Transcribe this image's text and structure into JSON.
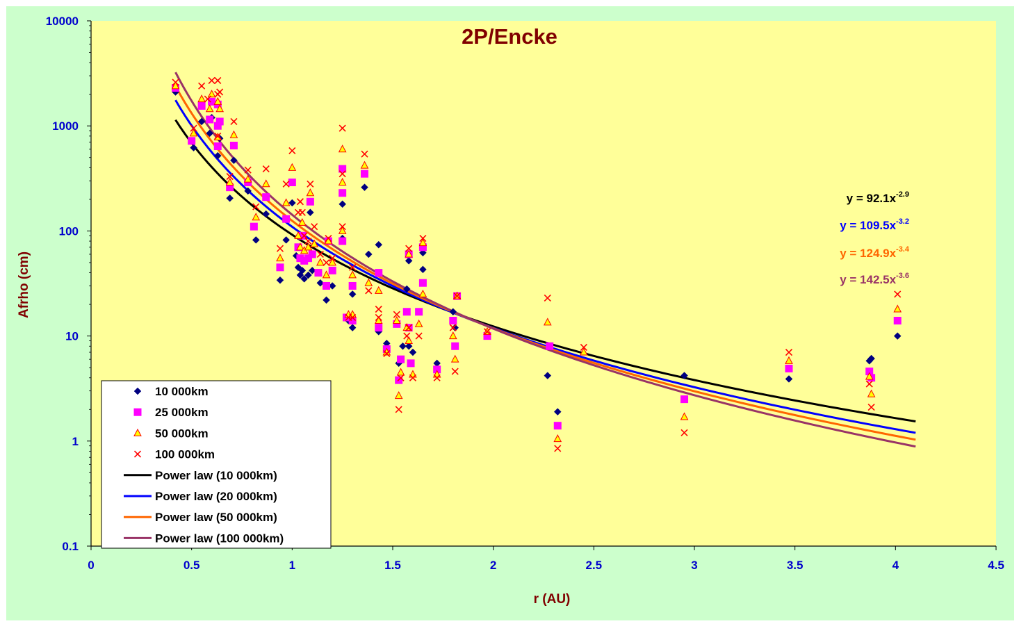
{
  "colors": {
    "chart_area": "#ccffcc",
    "plot_area": "#ffff99",
    "title": "#800000",
    "axis_label": "#800000",
    "tick_label": "#0000cc",
    "marker_10k": "#000080",
    "marker_25k": "#ff00ff",
    "marker_50k_fill": "#ffff00",
    "marker_50k_edge": "#ff0000",
    "marker_100k": "#ff0000",
    "fit_10k": "#000000",
    "fit_20k": "#0000ff",
    "fit_50k": "#ff6600",
    "fit_100k": "#993366"
  },
  "chart_data": {
    "type": "scatter",
    "title": "2P/Encke",
    "xlabel": "r (AU)",
    "ylabel": "Afrho (cm)",
    "xlim": [
      0,
      4.5
    ],
    "ylim": [
      0.1,
      10000
    ],
    "yscale": "log",
    "x_ticks": [
      "0",
      "0.5",
      "1",
      "1.5",
      "2",
      "2.5",
      "3",
      "3.5",
      "4",
      "4.5"
    ],
    "y_ticks": [
      "0.1",
      "1",
      "10",
      "100",
      "1000",
      "10000"
    ],
    "grid": false,
    "legend_position": "bottom-left",
    "series": [
      {
        "name": "10 000km",
        "marker": "diamond",
        "points": [
          [
            0.42,
            2100
          ],
          [
            0.51,
            620
          ],
          [
            0.55,
            1100
          ],
          [
            0.59,
            850
          ],
          [
            0.6,
            1200
          ],
          [
            0.63,
            520
          ],
          [
            0.64,
            760
          ],
          [
            0.69,
            205
          ],
          [
            0.71,
            470
          ],
          [
            0.78,
            240
          ],
          [
            0.82,
            82
          ],
          [
            0.87,
            145
          ],
          [
            0.94,
            34
          ],
          [
            0.97,
            82
          ],
          [
            1.0,
            185
          ],
          [
            1.02,
            58
          ],
          [
            1.03,
            45
          ],
          [
            1.04,
            38
          ],
          [
            1.05,
            42
          ],
          [
            1.06,
            35
          ],
          [
            1.08,
            38
          ],
          [
            1.09,
            150
          ],
          [
            1.1,
            42
          ],
          [
            1.14,
            32
          ],
          [
            1.17,
            22
          ],
          [
            1.2,
            30
          ],
          [
            1.25,
            180
          ],
          [
            1.25,
            85
          ],
          [
            1.28,
            14
          ],
          [
            1.3,
            12
          ],
          [
            1.3,
            25
          ],
          [
            1.36,
            260
          ],
          [
            1.38,
            60
          ],
          [
            1.43,
            74
          ],
          [
            1.43,
            11
          ],
          [
            1.47,
            8.5
          ],
          [
            1.52,
            13
          ],
          [
            1.53,
            5.5
          ],
          [
            1.55,
            8
          ],
          [
            1.57,
            28
          ],
          [
            1.58,
            8
          ],
          [
            1.58,
            52
          ],
          [
            1.6,
            7
          ],
          [
            1.65,
            62
          ],
          [
            1.65,
            43
          ],
          [
            1.72,
            5.5
          ],
          [
            1.8,
            17
          ],
          [
            1.81,
            12
          ],
          [
            1.97,
            10
          ],
          [
            2.27,
            4.2
          ],
          [
            2.32,
            1.9
          ],
          [
            2.95,
            4.2
          ],
          [
            3.47,
            3.9
          ],
          [
            3.87,
            5.8
          ],
          [
            3.88,
            6.1
          ],
          [
            4.01,
            10
          ]
        ]
      },
      {
        "name": "25 000km",
        "marker": "square",
        "points": [
          [
            0.42,
            2300
          ],
          [
            0.5,
            720
          ],
          [
            0.55,
            1550
          ],
          [
            0.59,
            1150
          ],
          [
            0.6,
            1700
          ],
          [
            0.63,
            1600
          ],
          [
            0.63,
            1000
          ],
          [
            0.64,
            1100
          ],
          [
            0.63,
            640
          ],
          [
            0.69,
            260
          ],
          [
            0.71,
            650
          ],
          [
            0.78,
            290
          ],
          [
            0.81,
            110
          ],
          [
            0.87,
            210
          ],
          [
            0.94,
            45
          ],
          [
            0.97,
            130
          ],
          [
            1.0,
            290
          ],
          [
            1.03,
            70
          ],
          [
            1.04,
            55
          ],
          [
            1.05,
            90
          ],
          [
            1.06,
            52
          ],
          [
            1.08,
            55
          ],
          [
            1.09,
            190
          ],
          [
            1.1,
            60
          ],
          [
            1.13,
            40
          ],
          [
            1.17,
            30
          ],
          [
            1.18,
            80
          ],
          [
            1.2,
            42
          ],
          [
            1.25,
            390
          ],
          [
            1.25,
            230
          ],
          [
            1.25,
            80
          ],
          [
            1.27,
            15
          ],
          [
            1.3,
            14
          ],
          [
            1.3,
            30
          ],
          [
            1.36,
            350
          ],
          [
            1.43,
            40
          ],
          [
            1.43,
            12
          ],
          [
            1.47,
            7.5
          ],
          [
            1.52,
            13
          ],
          [
            1.53,
            3.8
          ],
          [
            1.54,
            6
          ],
          [
            1.57,
            17
          ],
          [
            1.58,
            12
          ],
          [
            1.58,
            60
          ],
          [
            1.59,
            5.5
          ],
          [
            1.63,
            17
          ],
          [
            1.65,
            32
          ],
          [
            1.65,
            70
          ],
          [
            1.72,
            4.8
          ],
          [
            1.8,
            14
          ],
          [
            1.81,
            8
          ],
          [
            1.82,
            24
          ],
          [
            1.97,
            10
          ],
          [
            2.28,
            8
          ],
          [
            2.32,
            1.4
          ],
          [
            2.95,
            2.5
          ],
          [
            3.47,
            4.9
          ],
          [
            3.87,
            4.6
          ],
          [
            3.88,
            4
          ],
          [
            4.01,
            14
          ]
        ]
      },
      {
        "name": "50 000km",
        "marker": "triangle",
        "points": [
          [
            0.42,
            2400
          ],
          [
            0.51,
            850
          ],
          [
            0.55,
            1800
          ],
          [
            0.59,
            1450
          ],
          [
            0.6,
            2000
          ],
          [
            0.63,
            1700
          ],
          [
            0.64,
            1450
          ],
          [
            0.63,
            780
          ],
          [
            0.69,
            290
          ],
          [
            0.71,
            820
          ],
          [
            0.78,
            310
          ],
          [
            0.82,
            135
          ],
          [
            0.87,
            280
          ],
          [
            0.94,
            55
          ],
          [
            0.97,
            185
          ],
          [
            1.0,
            400
          ],
          [
            1.03,
            90
          ],
          [
            1.04,
            70
          ],
          [
            1.05,
            120
          ],
          [
            1.06,
            65
          ],
          [
            1.08,
            70
          ],
          [
            1.09,
            230
          ],
          [
            1.11,
            75
          ],
          [
            1.14,
            50
          ],
          [
            1.17,
            38
          ],
          [
            1.18,
            80
          ],
          [
            1.2,
            50
          ],
          [
            1.25,
            600
          ],
          [
            1.25,
            290
          ],
          [
            1.25,
            100
          ],
          [
            1.28,
            16
          ],
          [
            1.3,
            16
          ],
          [
            1.3,
            38
          ],
          [
            1.36,
            420
          ],
          [
            1.38,
            32
          ],
          [
            1.43,
            27
          ],
          [
            1.43,
            14
          ],
          [
            1.47,
            7
          ],
          [
            1.52,
            14
          ],
          [
            1.53,
            2.7
          ],
          [
            1.54,
            4.5
          ],
          [
            1.57,
            12
          ],
          [
            1.58,
            9
          ],
          [
            1.58,
            60
          ],
          [
            1.6,
            4.3
          ],
          [
            1.63,
            13
          ],
          [
            1.65,
            25
          ],
          [
            1.65,
            77
          ],
          [
            1.72,
            4.3
          ],
          [
            1.8,
            10
          ],
          [
            1.81,
            6
          ],
          [
            1.82,
            24
          ],
          [
            1.97,
            11
          ],
          [
            2.27,
            13.5
          ],
          [
            2.32,
            1.05
          ],
          [
            2.45,
            7
          ],
          [
            2.95,
            1.7
          ],
          [
            3.47,
            5.8
          ],
          [
            3.87,
            4.1
          ],
          [
            3.88,
            2.8
          ],
          [
            4.01,
            18
          ]
        ]
      },
      {
        "name": "100 000km",
        "marker": "x",
        "points": [
          [
            0.42,
            2600
          ],
          [
            0.51,
            950
          ],
          [
            0.55,
            2400
          ],
          [
            0.58,
            1800
          ],
          [
            0.6,
            2700
          ],
          [
            0.63,
            2700
          ],
          [
            0.63,
            2000
          ],
          [
            0.63,
            800
          ],
          [
            0.64,
            2100
          ],
          [
            0.69,
            330
          ],
          [
            0.71,
            1100
          ],
          [
            0.78,
            380
          ],
          [
            0.82,
            170
          ],
          [
            0.87,
            390
          ],
          [
            0.94,
            68
          ],
          [
            0.97,
            280
          ],
          [
            1.0,
            580
          ],
          [
            1.03,
            150
          ],
          [
            1.04,
            190
          ],
          [
            1.05,
            150
          ],
          [
            1.06,
            90
          ],
          [
            1.08,
            80
          ],
          [
            1.09,
            280
          ],
          [
            1.11,
            110
          ],
          [
            1.14,
            60
          ],
          [
            1.17,
            50
          ],
          [
            1.18,
            85
          ],
          [
            1.2,
            55
          ],
          [
            1.25,
            950
          ],
          [
            1.25,
            350
          ],
          [
            1.25,
            110
          ],
          [
            1.28,
            15
          ],
          [
            1.3,
            15
          ],
          [
            1.3,
            45
          ],
          [
            1.36,
            540
          ],
          [
            1.38,
            27
          ],
          [
            1.43,
            18
          ],
          [
            1.43,
            15
          ],
          [
            1.47,
            6.8
          ],
          [
            1.52,
            16
          ],
          [
            1.53,
            2
          ],
          [
            1.54,
            4
          ],
          [
            1.57,
            10
          ],
          [
            1.58,
            12
          ],
          [
            1.58,
            68
          ],
          [
            1.6,
            4
          ],
          [
            1.63,
            10
          ],
          [
            1.65,
            85
          ],
          [
            1.72,
            4
          ],
          [
            1.8,
            12
          ],
          [
            1.81,
            4.6
          ],
          [
            1.82,
            24
          ],
          [
            1.97,
            11
          ],
          [
            2.27,
            23
          ],
          [
            2.32,
            0.85
          ],
          [
            2.45,
            7.8
          ],
          [
            2.95,
            1.2
          ],
          [
            3.47,
            7
          ],
          [
            3.87,
            3.5
          ],
          [
            3.88,
            2.1
          ],
          [
            4.01,
            25
          ]
        ]
      }
    ],
    "fits": [
      {
        "name": "Power law (10 000km)",
        "a": 92.1,
        "b": -2.9,
        "x_range": [
          0.42,
          4.1
        ],
        "equation": "y = 92.1x",
        "exponent": "-2.9"
      },
      {
        "name": "Power law (20 000km)",
        "a": 109.5,
        "b": -3.2,
        "x_range": [
          0.42,
          4.1
        ],
        "equation": "y = 109.5x",
        "exponent": "-3.2"
      },
      {
        "name": "Power law (50 000km)",
        "a": 124.9,
        "b": -3.4,
        "x_range": [
          0.42,
          4.1
        ],
        "equation": "y = 124.9x",
        "exponent": "-3.4"
      },
      {
        "name": "Power law (100 000km)",
        "a": 142.5,
        "b": -3.6,
        "x_range": [
          0.42,
          4.1
        ],
        "equation": "y = 142.5x",
        "exponent": "-3.6"
      }
    ]
  }
}
